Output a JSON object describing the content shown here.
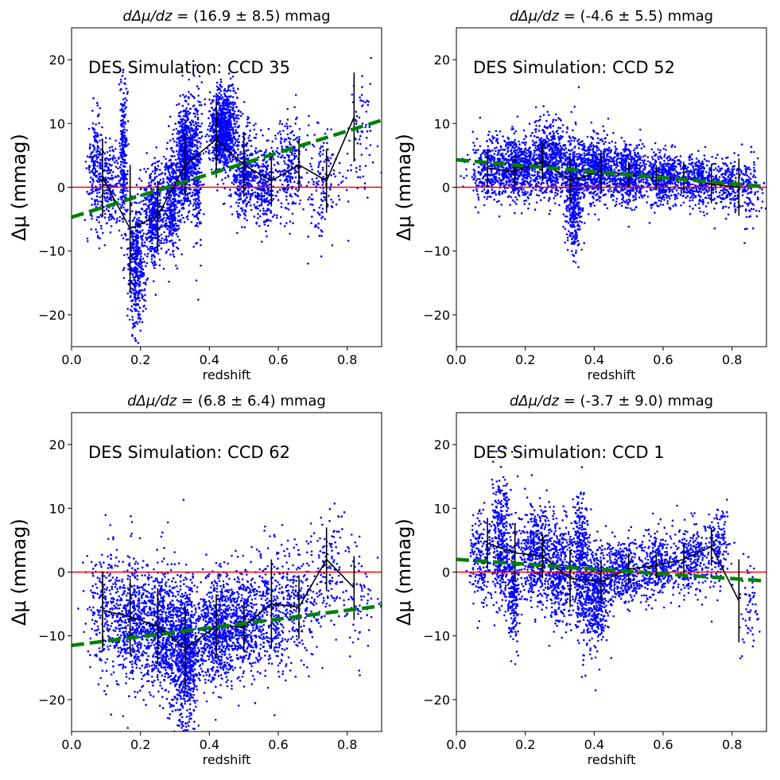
{
  "chart_data": [
    {
      "type": "scatter",
      "title_prefix": "dΔμ/dz",
      "title_value": " = (16.9 ± 8.5) mmag",
      "annotation": "DES Simulation: CCD 35",
      "xlabel": "redshift",
      "ylabel": "Δμ (mmag)",
      "xlim": [
        0.0,
        0.9
      ],
      "ylim": [
        -25,
        25
      ],
      "xticks": [
        0.0,
        0.2,
        0.4,
        0.6,
        0.8
      ],
      "xtick_labels": [
        "0.0",
        "0.2",
        "0.4",
        "0.6",
        "0.8"
      ],
      "yticks": [
        -20,
        -10,
        0,
        10,
        20
      ],
      "ytick_labels": [
        "−20",
        "−10",
        "0",
        "10",
        "20"
      ],
      "reference_line": {
        "y": 0,
        "color": "#ff0000"
      },
      "fit_line": {
        "x": [
          0.0,
          0.9
        ],
        "y": [
          -4.7,
          10.5
        ],
        "color": "#008000",
        "style": "dashed"
      },
      "binned": {
        "x": [
          0.09,
          0.17,
          0.25,
          0.33,
          0.42,
          0.5,
          0.58,
          0.66,
          0.74,
          0.82
        ],
        "y": [
          1.5,
          -6.5,
          -4.5,
          3.5,
          7.5,
          3.5,
          1.0,
          3.5,
          1.0,
          11.0
        ],
        "err": [
          6.0,
          10.0,
          5.5,
          5.0,
          6.0,
          5.0,
          4.0,
          4.0,
          5.0,
          7.0
        ],
        "color": "#000000"
      },
      "scatter": {
        "color": "#0000ff",
        "clusters": [
          {
            "x": 0.07,
            "sx": 0.012,
            "y": 3,
            "sy": 4,
            "n": 220
          },
          {
            "x": 0.11,
            "sx": 0.015,
            "y": 0,
            "sy": 3.5,
            "n": 180
          },
          {
            "x": 0.15,
            "sx": 0.006,
            "y": 5,
            "sy": 6,
            "n": 260
          },
          {
            "x": 0.19,
            "sx": 0.012,
            "y": -12,
            "sy": 5,
            "n": 450
          },
          {
            "x": 0.24,
            "sx": 0.015,
            "y": -4,
            "sy": 4,
            "n": 420
          },
          {
            "x": 0.29,
            "sx": 0.012,
            "y": -2,
            "sy": 4,
            "n": 380
          },
          {
            "x": 0.33,
            "sx": 0.012,
            "y": 5,
            "sy": 4,
            "n": 650
          },
          {
            "x": 0.365,
            "sx": 0.007,
            "y": 3,
            "sy": 6,
            "n": 260
          },
          {
            "x": 0.44,
            "sx": 0.02,
            "y": 9,
            "sy": 3,
            "n": 900
          },
          {
            "x": 0.5,
            "sx": 0.02,
            "y": 2,
            "sy": 3.5,
            "n": 380
          },
          {
            "x": 0.56,
            "sx": 0.015,
            "y": 0,
            "sy": 3.5,
            "n": 260
          },
          {
            "x": 0.63,
            "sx": 0.02,
            "y": 3,
            "sy": 4,
            "n": 230
          },
          {
            "x": 0.73,
            "sx": 0.03,
            "y": 1,
            "sy": 4,
            "n": 160
          },
          {
            "x": 0.84,
            "sx": 0.02,
            "y": 8,
            "sy": 5,
            "n": 70
          }
        ]
      }
    },
    {
      "type": "scatter",
      "title_prefix": "dΔμ/dz",
      "title_value": " = (-4.6 ± 5.5) mmag",
      "annotation": "DES Simulation: CCD 52",
      "xlabel": "redshift",
      "ylabel": "Δμ (mmag)",
      "xlim": [
        0.0,
        0.9
      ],
      "ylim": [
        -25,
        25
      ],
      "xticks": [
        0.0,
        0.2,
        0.4,
        0.6,
        0.8
      ],
      "xtick_labels": [
        "0.0",
        "0.2",
        "0.4",
        "0.6",
        "0.8"
      ],
      "yticks": [
        -20,
        -10,
        0,
        10,
        20
      ],
      "ytick_labels": [
        "−20",
        "−10",
        "0",
        "10",
        "20"
      ],
      "reference_line": {
        "y": 0,
        "color": "#ff0000"
      },
      "fit_line": {
        "x": [
          0.0,
          0.9
        ],
        "y": [
          4.3,
          0.1
        ],
        "color": "#008000",
        "style": "dashed"
      },
      "binned": {
        "x": [
          0.09,
          0.17,
          0.25,
          0.33,
          0.42,
          0.5,
          0.58,
          0.66,
          0.74,
          0.82
        ],
        "y": [
          3.0,
          2.5,
          4.0,
          1.0,
          2.5,
          2.0,
          1.5,
          1.5,
          0.5,
          0.0
        ],
        "err": [
          3.0,
          2.5,
          3.0,
          3.5,
          3.0,
          2.0,
          2.0,
          2.5,
          3.0,
          4.5
        ],
        "color": "#000000"
      },
      "scatter": {
        "color": "#0000ff",
        "clusters": [
          {
            "x": 0.1,
            "sx": 0.03,
            "y": 3,
            "sy": 2.5,
            "n": 350
          },
          {
            "x": 0.18,
            "sx": 0.03,
            "y": 3,
            "sy": 2.5,
            "n": 500
          },
          {
            "x": 0.27,
            "sx": 0.03,
            "y": 4,
            "sy": 3,
            "n": 650
          },
          {
            "x": 0.34,
            "sx": 0.012,
            "y": -1,
            "sy": 4,
            "n": 450
          },
          {
            "x": 0.4,
            "sx": 0.03,
            "y": 3,
            "sy": 2.5,
            "n": 650
          },
          {
            "x": 0.5,
            "sx": 0.03,
            "y": 2,
            "sy": 2.5,
            "n": 550
          },
          {
            "x": 0.6,
            "sx": 0.03,
            "y": 1.5,
            "sy": 2,
            "n": 450
          },
          {
            "x": 0.7,
            "sx": 0.03,
            "y": 1,
            "sy": 2,
            "n": 350
          },
          {
            "x": 0.8,
            "sx": 0.03,
            "y": 0.5,
            "sy": 2,
            "n": 250
          },
          {
            "x": 0.86,
            "sx": 0.015,
            "y": -1,
            "sy": 3,
            "n": 70
          }
        ]
      }
    },
    {
      "type": "scatter",
      "title_prefix": "dΔμ/dz",
      "title_value": " = (6.8 ± 6.4) mmag",
      "annotation": "DES Simulation: CCD 62",
      "xlabel": "redshift",
      "ylabel": "Δμ (mmag)",
      "xlim": [
        0.0,
        0.9
      ],
      "ylim": [
        -25,
        25
      ],
      "xticks": [
        0.0,
        0.2,
        0.4,
        0.6,
        0.8
      ],
      "xtick_labels": [
        "0.0",
        "0.2",
        "0.4",
        "0.6",
        "0.8"
      ],
      "yticks": [
        -20,
        -10,
        0,
        10,
        20
      ],
      "ytick_labels": [
        "−20",
        "−10",
        "0",
        "10",
        "20"
      ],
      "reference_line": {
        "y": 0,
        "color": "#ff0000"
      },
      "fit_line": {
        "x": [
          0.0,
          0.9
        ],
        "y": [
          -11.5,
          -5.3
        ],
        "color": "#008000",
        "style": "dashed"
      },
      "binned": {
        "x": [
          0.09,
          0.17,
          0.25,
          0.33,
          0.42,
          0.5,
          0.58,
          0.66,
          0.74,
          0.82
        ],
        "y": [
          -6.0,
          -7.0,
          -8.5,
          -12.0,
          -8.5,
          -8.5,
          -5.0,
          -5.5,
          2.0,
          -2.5
        ],
        "err": [
          6.0,
          6.0,
          6.0,
          6.5,
          5.0,
          4.0,
          7.0,
          5.0,
          5.0,
          5.0
        ],
        "color": "#000000"
      },
      "scatter": {
        "color": "#0000ff",
        "clusters": [
          {
            "x": 0.1,
            "sx": 0.03,
            "y": -6,
            "sy": 5,
            "n": 250
          },
          {
            "x": 0.18,
            "sx": 0.03,
            "y": -8,
            "sy": 5,
            "n": 500
          },
          {
            "x": 0.26,
            "sx": 0.03,
            "y": -9,
            "sy": 5,
            "n": 650
          },
          {
            "x": 0.33,
            "sx": 0.02,
            "y": -13,
            "sy": 5.5,
            "n": 800
          },
          {
            "x": 0.42,
            "sx": 0.03,
            "y": -9,
            "sy": 4.5,
            "n": 650
          },
          {
            "x": 0.5,
            "sx": 0.03,
            "y": -8,
            "sy": 4,
            "n": 450
          },
          {
            "x": 0.58,
            "sx": 0.03,
            "y": -6,
            "sy": 5,
            "n": 300
          },
          {
            "x": 0.66,
            "sx": 0.03,
            "y": -5,
            "sy": 5,
            "n": 200
          },
          {
            "x": 0.75,
            "sx": 0.03,
            "y": 0,
            "sy": 5,
            "n": 140
          },
          {
            "x": 0.84,
            "sx": 0.02,
            "y": -4,
            "sy": 5,
            "n": 60
          }
        ]
      }
    },
    {
      "type": "scatter",
      "title_prefix": "dΔμ/dz",
      "title_value": " = (-3.7 ± 9.0) mmag",
      "annotation": "DES Simulation: CCD 1",
      "xlabel": "redshift",
      "ylabel": "Δμ (mmag)",
      "xlim": [
        0.0,
        0.9
      ],
      "ylim": [
        -25,
        25
      ],
      "xticks": [
        0.0,
        0.2,
        0.4,
        0.6,
        0.8
      ],
      "xtick_labels": [
        "0.0",
        "0.2",
        "0.4",
        "0.6",
        "0.8"
      ],
      "yticks": [
        -20,
        -10,
        0,
        10,
        20
      ],
      "ytick_labels": [
        "−20",
        "−10",
        "0",
        "10",
        "20"
      ],
      "reference_line": {
        "y": 0,
        "color": "#ff0000"
      },
      "fit_line": {
        "x": [
          0.0,
          0.9
        ],
        "y": [
          2.0,
          -1.4
        ],
        "color": "#008000",
        "style": "dashed"
      },
      "binned": {
        "x": [
          0.09,
          0.17,
          0.25,
          0.33,
          0.42,
          0.5,
          0.58,
          0.66,
          0.74,
          0.82
        ],
        "y": [
          4.5,
          3.0,
          2.5,
          -1.0,
          -1.5,
          0.5,
          1.0,
          2.0,
          4.0,
          -4.5
        ],
        "err": [
          4.0,
          4.5,
          3.5,
          4.5,
          3.5,
          2.5,
          2.0,
          2.5,
          3.0,
          6.5
        ],
        "color": "#000000"
      },
      "scatter": {
        "color": "#0000ff",
        "clusters": [
          {
            "x": 0.07,
            "sx": 0.015,
            "y": 2,
            "sy": 4,
            "n": 200
          },
          {
            "x": 0.13,
            "sx": 0.015,
            "y": 5,
            "sy": 5,
            "n": 400
          },
          {
            "x": 0.165,
            "sx": 0.008,
            "y": -3,
            "sy": 4,
            "n": 200
          },
          {
            "x": 0.23,
            "sx": 0.025,
            "y": 3,
            "sy": 4,
            "n": 500
          },
          {
            "x": 0.3,
            "sx": 0.02,
            "y": 0,
            "sy": 4,
            "n": 400
          },
          {
            "x": 0.36,
            "sx": 0.012,
            "y": 2,
            "sy": 5,
            "n": 350
          },
          {
            "x": 0.4,
            "sx": 0.02,
            "y": -4,
            "sy": 4,
            "n": 500
          },
          {
            "x": 0.48,
            "sx": 0.03,
            "y": 0,
            "sy": 2.5,
            "n": 400
          },
          {
            "x": 0.58,
            "sx": 0.03,
            "y": 1,
            "sy": 2.5,
            "n": 350
          },
          {
            "x": 0.68,
            "sx": 0.03,
            "y": 2,
            "sy": 3,
            "n": 300
          },
          {
            "x": 0.76,
            "sx": 0.015,
            "y": 4,
            "sy": 3,
            "n": 150
          },
          {
            "x": 0.85,
            "sx": 0.015,
            "y": -5,
            "sy": 3,
            "n": 60
          }
        ]
      }
    }
  ]
}
